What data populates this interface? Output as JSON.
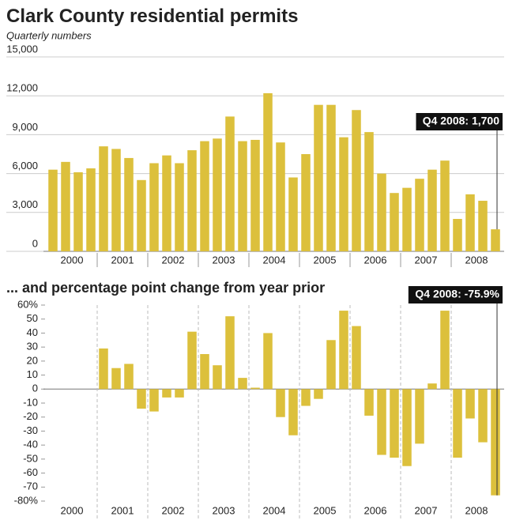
{
  "chart_data": [
    {
      "type": "bar",
      "title": "Clark County residential permits",
      "subtitle": "Quarterly numbers",
      "years": [
        "2000",
        "2001",
        "2002",
        "2003",
        "2004",
        "2005",
        "2006",
        "2007",
        "2008"
      ],
      "values": [
        6300,
        6900,
        6100,
        6400,
        8100,
        7900,
        7200,
        5500,
        6800,
        7400,
        6800,
        7800,
        8500,
        8700,
        10400,
        8500,
        8600,
        12200,
        8400,
        5700,
        7500,
        11300,
        11300,
        8800,
        10900,
        9200,
        6000,
        4500,
        4900,
        5600,
        6300,
        7000,
        2500,
        4400,
        3900,
        1700
      ],
      "color": "#dcc03c",
      "ylim": [
        0,
        15000
      ],
      "yticks": [
        0,
        {
          "value": 3000,
          "label": "3,000"
        },
        {
          "value": 6000,
          "label": "6,000"
        },
        {
          "value": 9000,
          "label": "9,000"
        },
        {
          "value": 12000,
          "label": "12,000"
        },
        {
          "value": 15000,
          "label": "15,000"
        }
      ],
      "grid": true,
      "annotation": "Q4 2008: 1,700"
    },
    {
      "type": "bar",
      "title": "... and percentage point change from year prior",
      "years": [
        "2000",
        "2001",
        "2002",
        "2003",
        "2004",
        "2005",
        "2006",
        "2007",
        "2008"
      ],
      "values": [
        null,
        null,
        null,
        null,
        29,
        15,
        18,
        -14,
        -16,
        -6,
        -6,
        41,
        25,
        17,
        52,
        8,
        1,
        40,
        -20,
        -33,
        -12,
        -7,
        35,
        56,
        45,
        -19,
        -47,
        -49,
        -55,
        -39,
        4,
        56,
        -49,
        -21,
        -38,
        -75.9
      ],
      "color": "#dcc03c",
      "ylim": [
        -80,
        60
      ],
      "yticks": [
        {
          "value": -80,
          "label": "-80%"
        },
        -70,
        -60,
        -50,
        -40,
        -30,
        -20,
        -10,
        0,
        10,
        20,
        30,
        40,
        50,
        {
          "value": 60,
          "label": "60%"
        }
      ],
      "grid": false,
      "annotation": "Q4 2008: -75.9%"
    }
  ]
}
